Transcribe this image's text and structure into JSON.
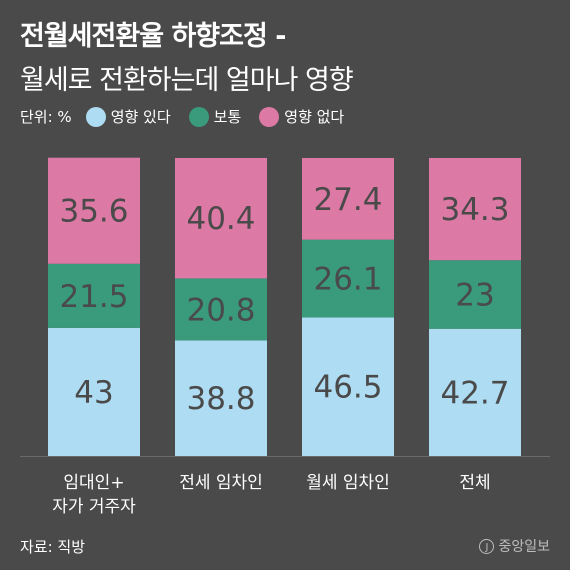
{
  "title": "전월세전환율 하향조정 -",
  "subtitle": "월세로 전환하는데 얼마나 영향",
  "unit_label": "단위: %",
  "source": "자료: 직방",
  "logo_text": "중앙일보",
  "logo_mark": "J",
  "colors": {
    "background": "#4a4a4a",
    "affected": "#aedcf2",
    "neutral": "#3a9a7c",
    "not_affected": "#dc79a4",
    "value_text": "#4a4a4a",
    "axis": "#6a6a6a"
  },
  "chart_data": {
    "type": "bar",
    "stacked": true,
    "categories": [
      [
        "임대인+",
        "자가 거주자"
      ],
      [
        "전세 임차인"
      ],
      [
        "월세 임차인"
      ],
      [
        "전체"
      ]
    ],
    "ylim": [
      0,
      100
    ],
    "series": [
      {
        "name": "영향 있다",
        "values": [
          43,
          38.8,
          46.5,
          42.7
        ]
      },
      {
        "name": "보통",
        "values": [
          21.5,
          20.8,
          26.1,
          23
        ]
      },
      {
        "name": "영향 없다",
        "values": [
          35.6,
          40.4,
          27.4,
          34.3
        ]
      }
    ],
    "legend_position": "top-left",
    "grid": false
  }
}
